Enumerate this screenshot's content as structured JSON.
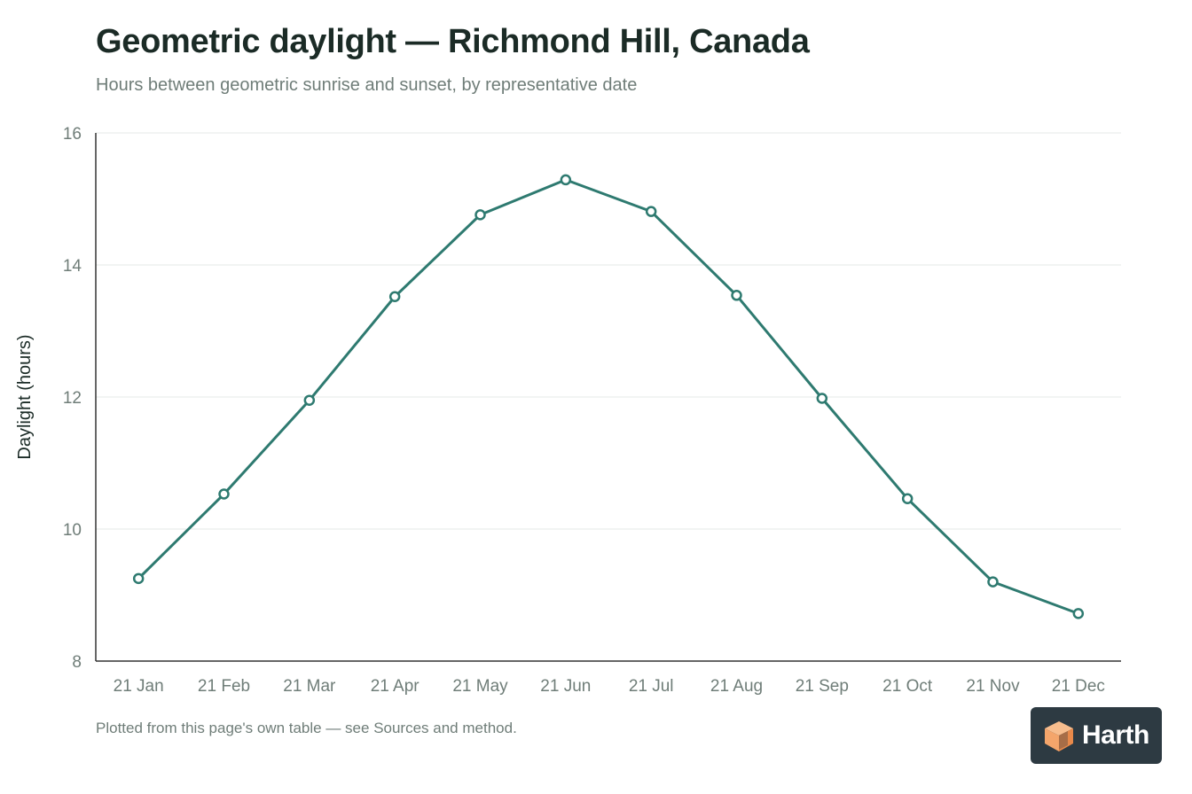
{
  "title": "Geometric daylight — Richmond Hill, Canada",
  "subtitle": "Hours between geometric sunrise and sunset, by representative date",
  "footnote": "Plotted from this page's own table — see Sources and method.",
  "logo": {
    "text": "Harth"
  },
  "colors": {
    "line": "#2e7a70",
    "grid": "#e6e8e7",
    "axis": "#333333",
    "tick_text": "#6f7d78",
    "title": "#1b2b26",
    "logo_bg": "#2d3a42",
    "logo_mark": "#f4a56b"
  },
  "chart_data": {
    "type": "line",
    "title": "Geometric daylight — Richmond Hill, Canada",
    "subtitle": "Hours between geometric sunrise and sunset, by representative date",
    "xlabel": "",
    "ylabel": "Daylight (hours)",
    "categories": [
      "21 Jan",
      "21 Feb",
      "21 Mar",
      "21 Apr",
      "21 May",
      "21 Jun",
      "21 Jul",
      "21 Aug",
      "21 Sep",
      "21 Oct",
      "21 Nov",
      "21 Dec"
    ],
    "series": [
      {
        "values": [
          9.25,
          10.53,
          11.95,
          13.52,
          14.76,
          15.29,
          14.81,
          13.54,
          11.98,
          10.46,
          9.2,
          8.72
        ]
      }
    ],
    "ylim": [
      8,
      16
    ],
    "yticks": [
      8,
      10,
      12,
      14,
      16
    ],
    "grid": "horizontal",
    "legend": "none",
    "markers": "hollow circles"
  }
}
